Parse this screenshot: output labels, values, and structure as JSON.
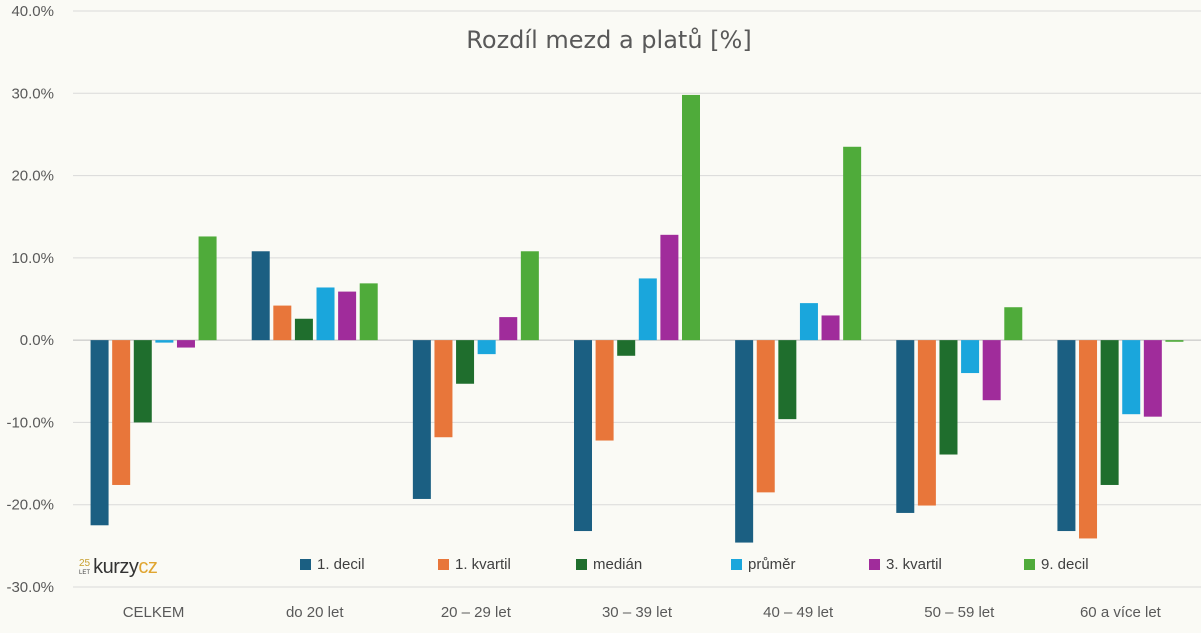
{
  "chart_data": {
    "type": "bar",
    "title": "Rozdíl mezd a platů  [%]",
    "xlabel": "",
    "ylabel": "",
    "ylim": [
      -30,
      40
    ],
    "yticks": [
      -30,
      -20,
      -10,
      0,
      10,
      20,
      30,
      40
    ],
    "ytick_labels": [
      "-30.0%",
      "-20.0%",
      "-10.0%",
      "0.0%",
      "10.0%",
      "20.0%",
      "30.0%",
      "40.0%"
    ],
    "grid": true,
    "legend_position": "bottom",
    "categories": [
      "CELKEM",
      "do 20 let",
      "20 – 29 let",
      "30 – 39 let",
      "40 – 49 let",
      "50 – 59 let",
      "60 a více let"
    ],
    "series": [
      {
        "name": "1. decil",
        "color": "#1b5f82",
        "values": [
          -22.5,
          10.8,
          -19.3,
          -23.2,
          -24.6,
          -21.0,
          -23.2
        ]
      },
      {
        "name": "1. kvartil",
        "color": "#e8763a",
        "values": [
          -17.6,
          4.2,
          -11.8,
          -12.2,
          -18.5,
          -20.1,
          -24.1
        ]
      },
      {
        "name": "medián",
        "color": "#1f6e2d",
        "values": [
          -10.0,
          2.6,
          -5.3,
          -1.9,
          -9.6,
          -13.9,
          -17.6
        ]
      },
      {
        "name": "průměr",
        "color": "#1aa6dc",
        "values": [
          -0.3,
          6.4,
          -1.7,
          7.5,
          4.5,
          -4.0,
          -9.0
        ]
      },
      {
        "name": "3. kvartil",
        "color": "#a02c9b",
        "values": [
          -0.9,
          5.9,
          2.8,
          12.8,
          3.0,
          -7.3,
          -9.3
        ]
      },
      {
        "name": "9. decil",
        "color": "#4fab3a",
        "values": [
          12.6,
          6.9,
          10.8,
          29.8,
          23.5,
          4.0,
          -0.2
        ]
      }
    ]
  },
  "logo": {
    "badge_number": "25",
    "badge_sub": "LET",
    "text_main": "kurzy",
    "text_accent": "cz"
  }
}
